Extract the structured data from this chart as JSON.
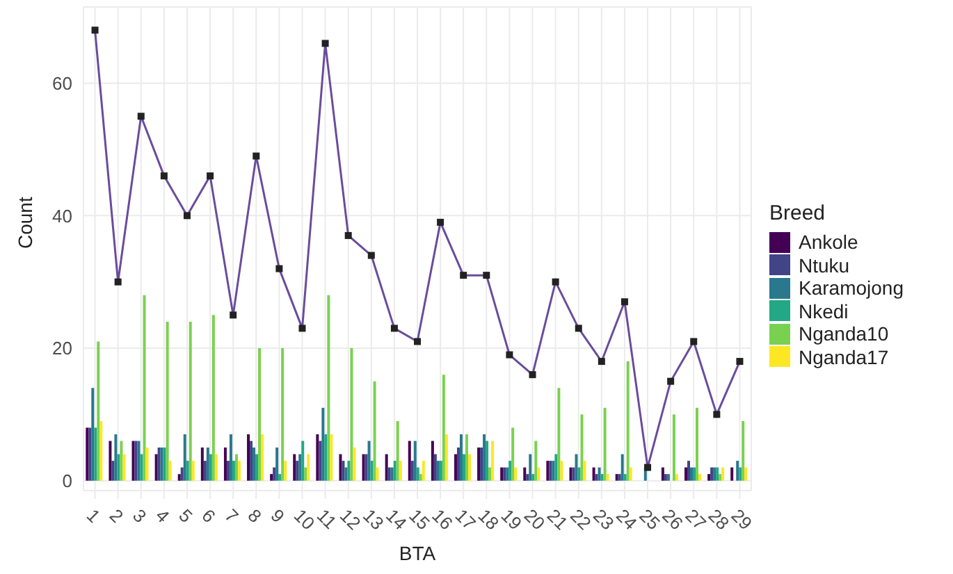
{
  "chart_data": {
    "type": "bar",
    "xlabel": "BTA",
    "ylabel": "Count",
    "legend_title": "Breed",
    "legend": "right",
    "grid": true,
    "categories": [
      "1",
      "2",
      "3",
      "4",
      "5",
      "6",
      "7",
      "8",
      "9",
      "10",
      "11",
      "12",
      "13",
      "14",
      "15",
      "16",
      "17",
      "18",
      "19",
      "20",
      "21",
      "22",
      "23",
      "24",
      "25",
      "26",
      "27",
      "28",
      "29"
    ],
    "ylim": [
      -1.5,
      71.5
    ],
    "yticks": [
      0,
      20,
      40,
      60
    ],
    "series": [
      {
        "name": "Ankole",
        "color": "#440154",
        "values": [
          8,
          6,
          6,
          4,
          1,
          5,
          5,
          7,
          1,
          4,
          7,
          4,
          4,
          4,
          6,
          6,
          4,
          5,
          2,
          2,
          3,
          2,
          2,
          1,
          null,
          2,
          2,
          1,
          2
        ]
      },
      {
        "name": "Ntuku",
        "color": "#414487",
        "values": [
          8,
          3,
          6,
          5,
          2,
          3,
          3,
          6,
          2,
          3,
          6,
          3,
          4,
          2,
          3,
          4,
          5,
          5,
          2,
          1,
          3,
          2,
          1,
          1,
          null,
          1,
          3,
          2,
          null
        ]
      },
      {
        "name": "Karamojong",
        "color": "#2a788e",
        "values": [
          14,
          7,
          6,
          5,
          7,
          5,
          7,
          5,
          5,
          4,
          11,
          2,
          6,
          2,
          6,
          3,
          7,
          7,
          2,
          4,
          3,
          4,
          2,
          4,
          2,
          1,
          2,
          2,
          3
        ]
      },
      {
        "name": "Nkedi",
        "color": "#22a884",
        "values": [
          8,
          4,
          4,
          5,
          3,
          4,
          3,
          4,
          1,
          6,
          7,
          3,
          3,
          3,
          2,
          3,
          4,
          6,
          3,
          1,
          4,
          2,
          1,
          1,
          null,
          null,
          2,
          2,
          2
        ]
      },
      {
        "name": "Nganda10",
        "color": "#7ad151",
        "values": [
          21,
          6,
          28,
          24,
          24,
          25,
          4,
          20,
          20,
          2,
          28,
          20,
          15,
          9,
          1,
          16,
          7,
          2,
          8,
          6,
          14,
          10,
          11,
          18,
          null,
          10,
          11,
          1,
          9
        ]
      },
      {
        "name": "Nganda17",
        "color": "#fde725",
        "values": [
          9,
          4,
          5,
          3,
          3,
          4,
          3,
          7,
          3,
          4,
          7,
          5,
          2,
          3,
          3,
          7,
          4,
          6,
          2,
          2,
          3,
          3,
          1,
          2,
          null,
          1,
          1,
          2,
          2
        ]
      },
      {
        "type": "line",
        "color": "#6a4c9c",
        "marker": "square",
        "values": [
          68,
          30,
          55,
          46,
          40,
          46,
          25,
          49,
          32,
          23,
          66,
          37,
          34,
          23,
          21,
          39,
          31,
          31,
          19,
          16,
          30,
          23,
          18,
          27,
          2,
          15,
          21,
          10,
          18
        ]
      }
    ]
  }
}
